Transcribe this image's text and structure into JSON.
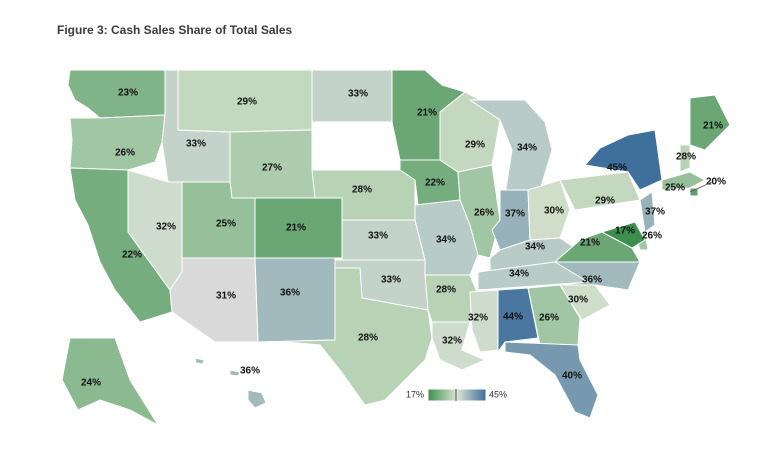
{
  "title": "Figure 3: Cash Sales Share of Total Sales",
  "legend": {
    "min_label": "17%",
    "max_label": "45%",
    "min_value": 17,
    "max_value": 45
  },
  "colors": {
    "low": "#3d8f4f",
    "mid": "#d9e4d2",
    "high": "#3f6f9b",
    "no_data": "#ffffff",
    "gray": "#d9d9d9"
  },
  "states": [
    {
      "code": "WA",
      "label": "23%",
      "value": 23
    },
    {
      "code": "OR",
      "label": "26%",
      "value": 26
    },
    {
      "code": "CA",
      "label": "22%",
      "value": 22
    },
    {
      "code": "ID",
      "label": "33%",
      "value": 33
    },
    {
      "code": "NV",
      "label": "32%",
      "value": 32
    },
    {
      "code": "MT",
      "label": "29%",
      "value": 29
    },
    {
      "code": "WY",
      "label": "27%",
      "value": 27
    },
    {
      "code": "UT",
      "label": "25%",
      "value": 25
    },
    {
      "code": "AZ",
      "label": "31%",
      "value": 31
    },
    {
      "code": "CO",
      "label": "21%",
      "value": 21
    },
    {
      "code": "NM",
      "label": "36%",
      "value": 36
    },
    {
      "code": "ND",
      "label": "33%",
      "value": 33
    },
    {
      "code": "SD",
      "label": "",
      "value": null
    },
    {
      "code": "NE",
      "label": "28%",
      "value": 28
    },
    {
      "code": "KS",
      "label": "33%",
      "value": 33
    },
    {
      "code": "OK",
      "label": "33%",
      "value": 33
    },
    {
      "code": "TX",
      "label": "28%",
      "value": 28
    },
    {
      "code": "MN",
      "label": "21%",
      "value": 21
    },
    {
      "code": "IA",
      "label": "22%",
      "value": 22
    },
    {
      "code": "MO",
      "label": "34%",
      "value": 34
    },
    {
      "code": "AR",
      "label": "28%",
      "value": 28
    },
    {
      "code": "LA",
      "label": "32%",
      "value": 32
    },
    {
      "code": "WI",
      "label": "29%",
      "value": 29
    },
    {
      "code": "IL",
      "label": "26%",
      "value": 26
    },
    {
      "code": "MI",
      "label": "34%",
      "value": 34
    },
    {
      "code": "IN",
      "label": "37%",
      "value": 37
    },
    {
      "code": "OH",
      "label": "30%",
      "value": 30
    },
    {
      "code": "KY",
      "label": "34%",
      "value": 34
    },
    {
      "code": "TN",
      "label": "34%",
      "value": 34
    },
    {
      "code": "MS",
      "label": "32%",
      "value": 32
    },
    {
      "code": "AL",
      "label": "44%",
      "value": 44
    },
    {
      "code": "GA",
      "label": "26%",
      "value": 26
    },
    {
      "code": "FL",
      "label": "40%",
      "value": 40
    },
    {
      "code": "SC",
      "label": "30%",
      "value": 30
    },
    {
      "code": "NC",
      "label": "36%",
      "value": 36
    },
    {
      "code": "VA",
      "label": "21%",
      "value": 21
    },
    {
      "code": "WV",
      "label": "",
      "value": null
    },
    {
      "code": "PA",
      "label": "29%",
      "value": 29
    },
    {
      "code": "NY",
      "label": "45%",
      "value": 45
    },
    {
      "code": "ME",
      "label": "21%",
      "value": 21
    },
    {
      "code": "NH",
      "label": "28%",
      "value": 28
    },
    {
      "code": "MA",
      "label": "25%",
      "value": 25
    },
    {
      "code": "RI",
      "label": "20%",
      "value": 20
    },
    {
      "code": "NJ",
      "label": "37%",
      "value": 37
    },
    {
      "code": "DE",
      "label": "26%",
      "value": 26
    },
    {
      "code": "MD",
      "label": "17%",
      "value": 17
    },
    {
      "code": "AK",
      "label": "24%",
      "value": 24
    },
    {
      "code": "HI",
      "label": "36%",
      "value": 36
    }
  ]
}
